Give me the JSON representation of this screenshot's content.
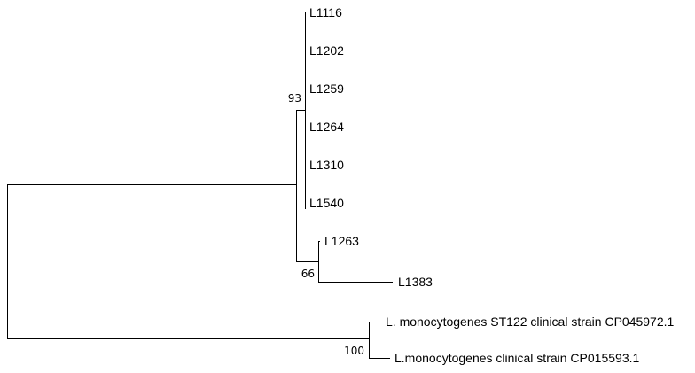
{
  "tree": {
    "line_color": "#000000",
    "leaves": [
      {
        "id": "l1116",
        "label": "L1116"
      },
      {
        "id": "l1202",
        "label": "L1202"
      },
      {
        "id": "l1259",
        "label": "L1259"
      },
      {
        "id": "l1264",
        "label": "L1264"
      },
      {
        "id": "l1310",
        "label": "L1310"
      },
      {
        "id": "l1540",
        "label": "L1540"
      },
      {
        "id": "l1263",
        "label": "L1263"
      },
      {
        "id": "l1383",
        "label": "L1383"
      },
      {
        "id": "cp045972",
        "label": "L. monocytogenes ST122 clinical strain CP045972.1"
      },
      {
        "id": "cp015593",
        "label": "L.monocytogenes clinical strain CP015593.1"
      }
    ],
    "bootstrap": [
      {
        "node": "clade-l1116-l1540",
        "value": "93"
      },
      {
        "node": "clade-l1263-l1383",
        "value": "66"
      },
      {
        "node": "clade-reference-strains",
        "value": "100"
      }
    ]
  }
}
